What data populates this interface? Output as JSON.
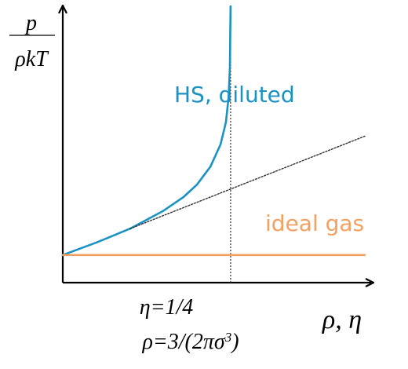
{
  "chart_data": {
    "type": "line",
    "title": "",
    "ylabel_numerator": "p",
    "ylabel_denominator": "ρkT",
    "xlabel": "ρ, η",
    "x_marker": {
      "line1": "η=1/4",
      "line2_prefix": "ρ=3/(2πσ",
      "line2_sup": "3",
      "line2_suffix": ")",
      "value": 0.25
    },
    "annotations": {
      "hs": "HS, diluted",
      "ideal": "ideal gas"
    },
    "colors": {
      "hs": "#1a93c4",
      "ideal": "#f4a062",
      "dilute_tangent": "#333333",
      "marker_line": "#333333",
      "axes": "#000000"
    },
    "xlim": [
      0,
      0.45
    ],
    "ylim": [
      0,
      10
    ],
    "series": [
      {
        "key": "hs",
        "x": [
          0,
          0.05,
          0.1,
          0.15,
          0.18,
          0.2,
          0.22,
          0.235,
          0.243,
          0.247,
          0.249,
          0.2495,
          0.25
        ],
        "y": [
          1.0,
          1.45,
          1.95,
          2.6,
          3.1,
          3.55,
          4.2,
          5.0,
          5.8,
          6.7,
          7.8,
          9.0,
          10.0
        ]
      },
      {
        "key": "ideal",
        "x": [
          0,
          0.45
        ],
        "y": [
          1.0,
          1.0
        ]
      },
      {
        "key": "dilute_tangent",
        "x": [
          0.1,
          0.45
        ],
        "y": [
          1.95,
          5.3
        ]
      }
    ]
  }
}
